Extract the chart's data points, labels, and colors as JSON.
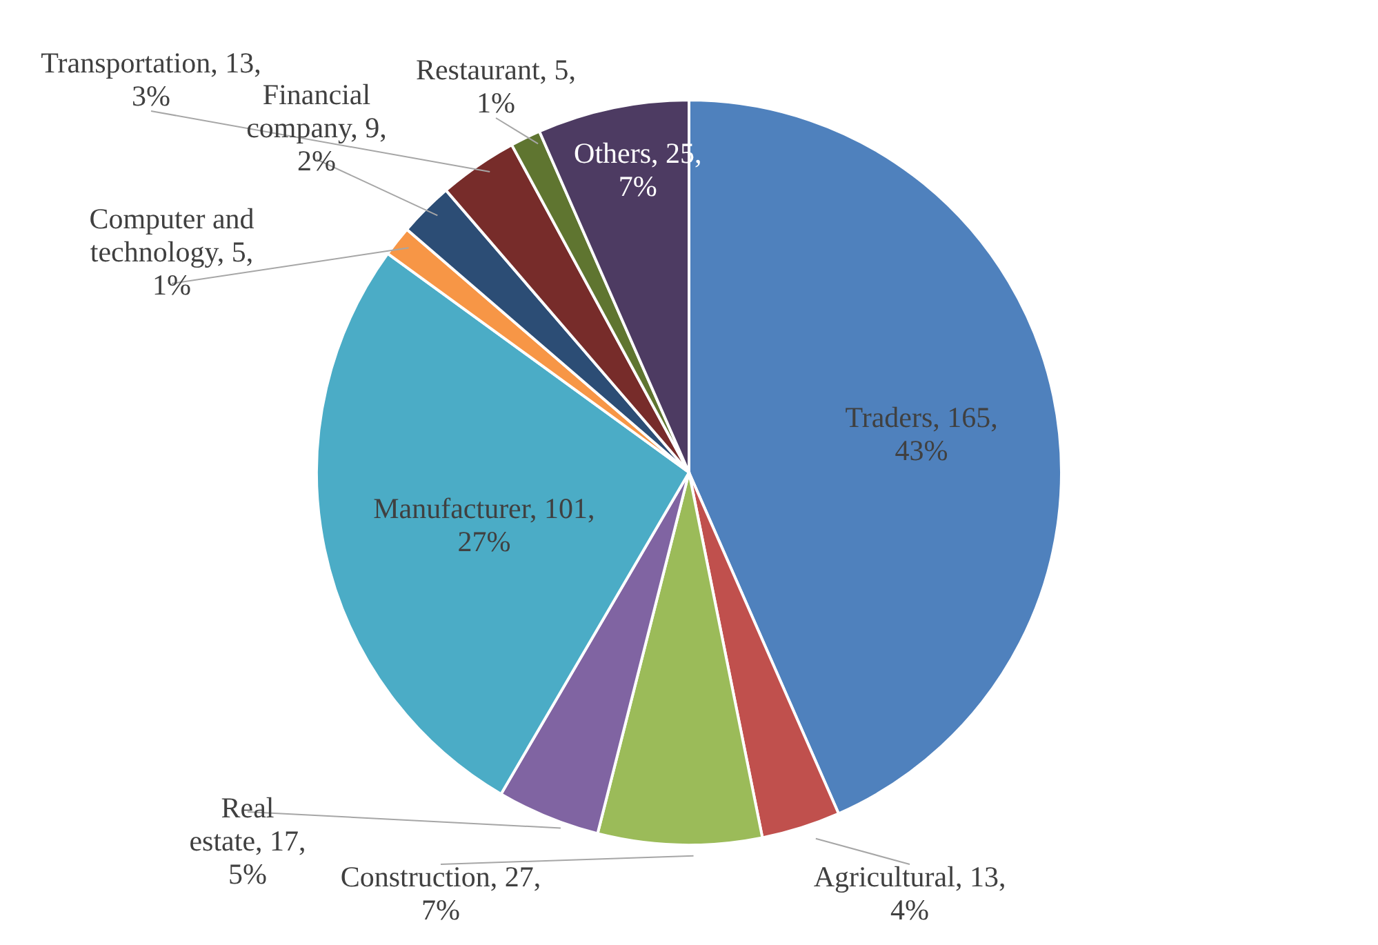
{
  "chart_data": {
    "type": "pie",
    "categories": [
      "Traders",
      "Agricultural",
      "Construction",
      "Real estate",
      "Manufacturer",
      "Computer and technology",
      "Financial company",
      "Transportation",
      "Restaurant",
      "Others"
    ],
    "values": [
      165,
      13,
      27,
      17,
      101,
      5,
      9,
      13,
      5,
      25
    ],
    "value_labels": [
      "165, 43%",
      "13, 4%",
      "27, 7%",
      "17, 5%",
      "101, 27%",
      "5, 1%",
      "9, 2%",
      "13, 3%",
      "5, 1%",
      "25, 7%"
    ],
    "colors": [
      "#4f81bd",
      "#c0504d",
      "#9bbb59",
      "#8064a2",
      "#4bacc6",
      "#f79646",
      "#2c4d75",
      "#772c2a",
      "#5f7530",
      "#4d3b62"
    ]
  }
}
